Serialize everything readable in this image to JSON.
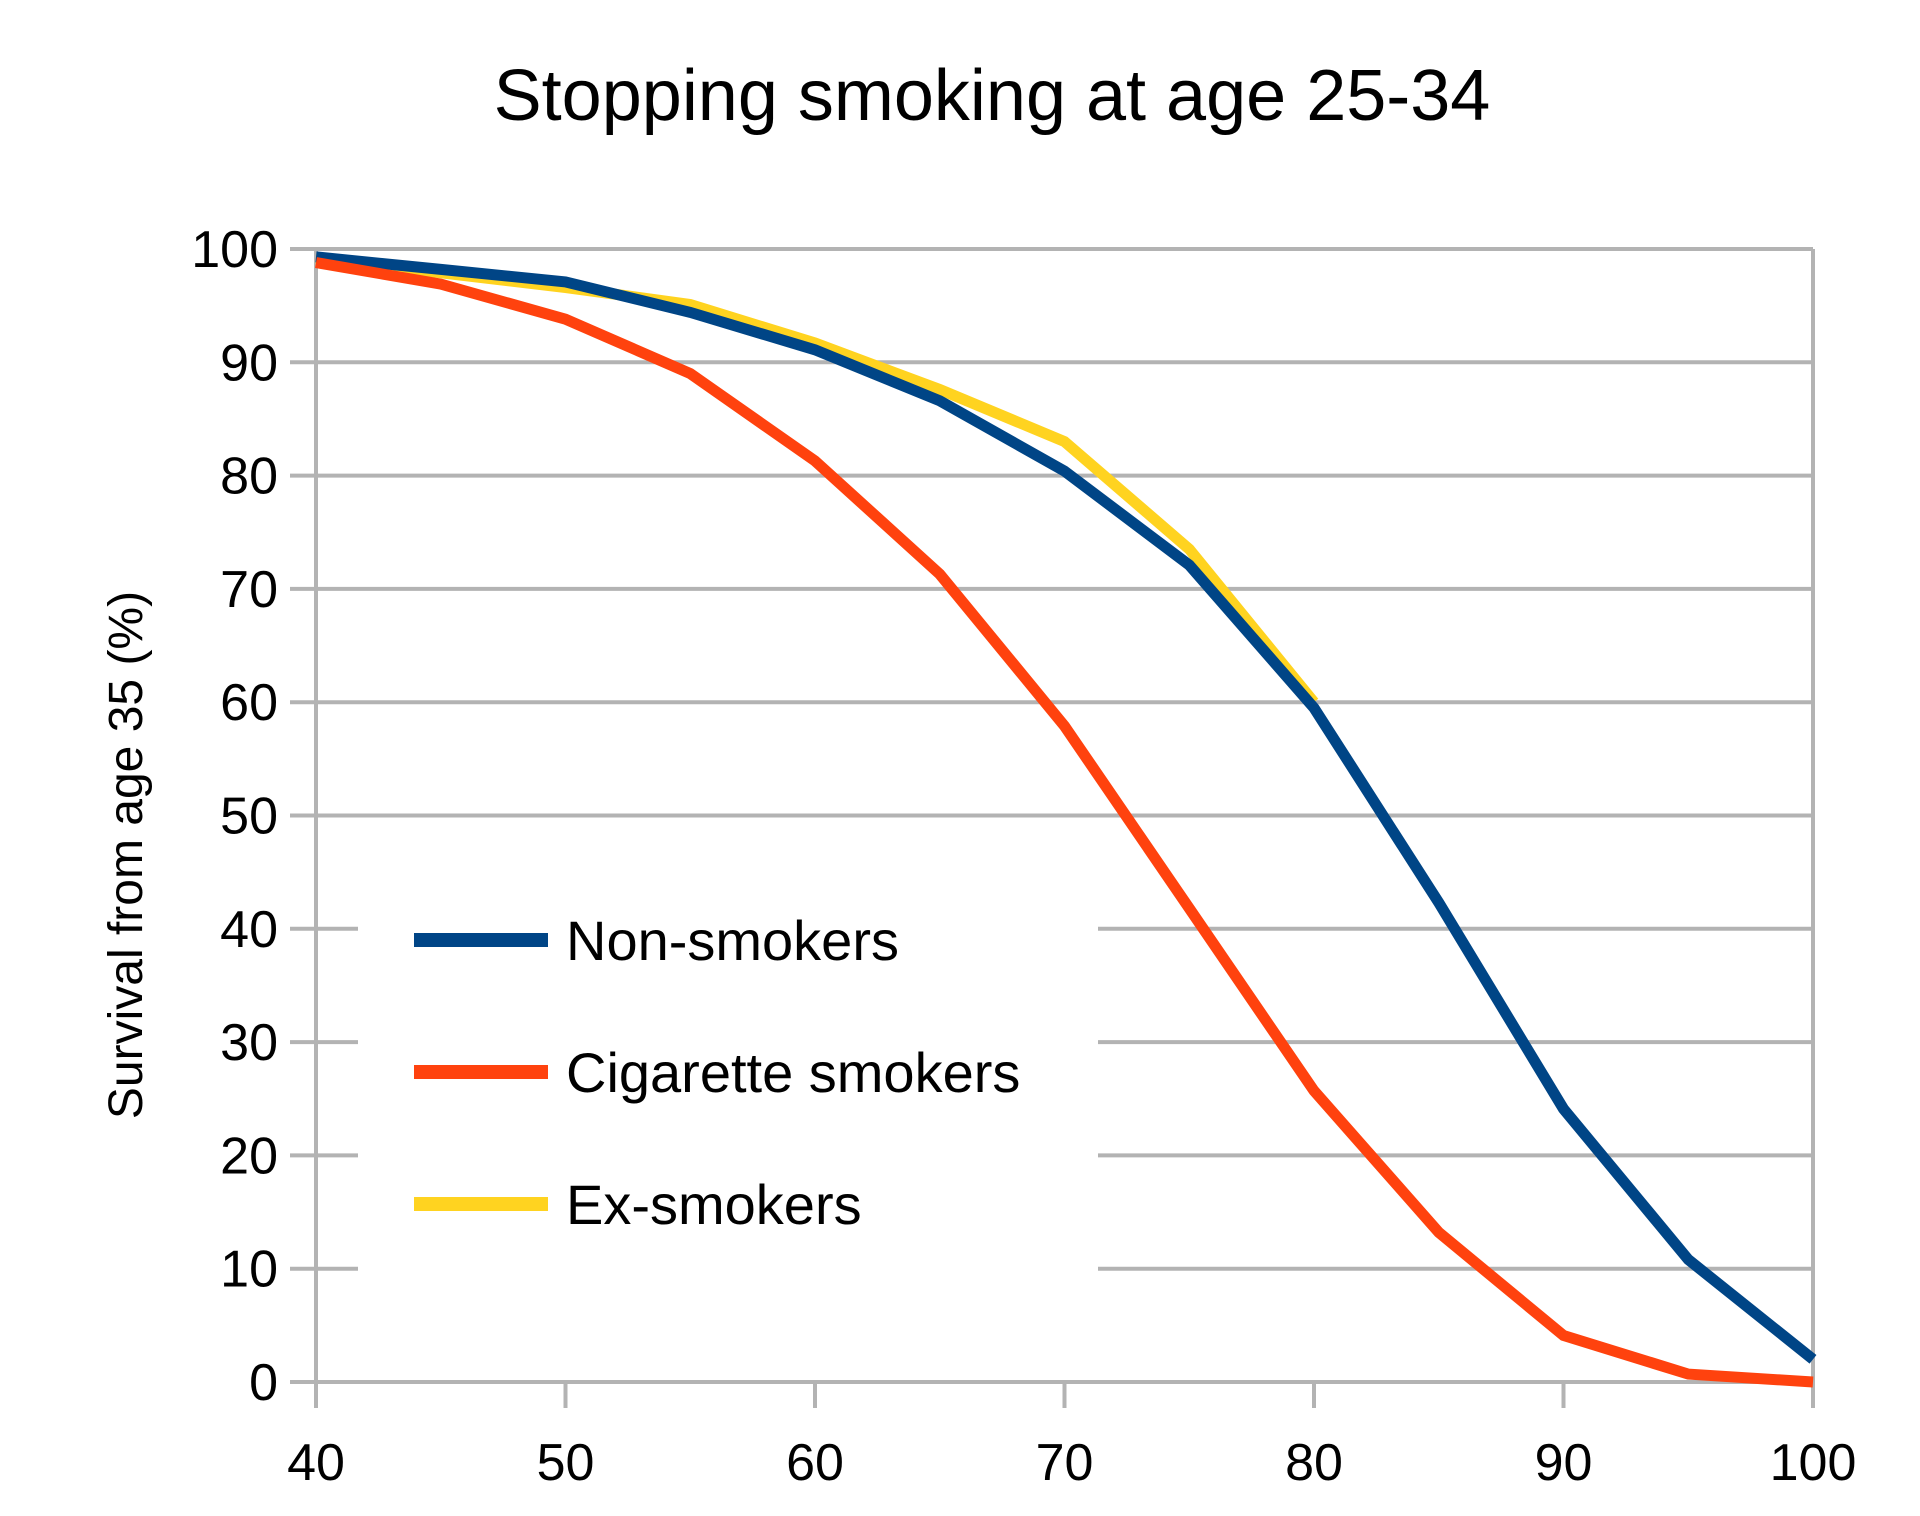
{
  "chart_data": {
    "type": "line",
    "title": "Stopping smoking at age 25-34",
    "xlabel": "",
    "ylabel": "Survival from age 35 (%)",
    "xlim": [
      40,
      100
    ],
    "ylim": [
      0,
      100
    ],
    "x_ticks": [
      40,
      50,
      60,
      70,
      80,
      90,
      100
    ],
    "y_ticks": [
      0,
      10,
      20,
      30,
      40,
      50,
      60,
      70,
      80,
      90,
      100
    ],
    "grid": true,
    "legend_position": "lower-left",
    "series": [
      {
        "name": "Non-smokers",
        "color": "#004586",
        "x": [
          40,
          45,
          50,
          55,
          60,
          65,
          70,
          75,
          80,
          85,
          90,
          95,
          100
        ],
        "y": [
          99.3,
          98.2,
          97.1,
          94.4,
          91.1,
          86.6,
          80.4,
          72.1,
          59.5,
          42.3,
          24.1,
          10.8,
          2.0
        ]
      },
      {
        "name": "Cigarette smokers",
        "color": "#ff420e",
        "x": [
          40,
          45,
          50,
          55,
          60,
          65,
          70,
          75,
          80,
          85,
          90,
          95,
          100
        ],
        "y": [
          98.8,
          96.9,
          93.8,
          89.0,
          81.3,
          71.3,
          57.9,
          41.8,
          25.7,
          13.2,
          4.1,
          0.7,
          0.0
        ]
      },
      {
        "name": "Ex-smokers",
        "color": "#ffd320",
        "x": [
          40,
          45,
          50,
          55,
          60,
          65,
          70,
          75,
          80
        ],
        "y": [
          99.2,
          97.9,
          96.6,
          95.1,
          91.7,
          87.6,
          83.0,
          73.5,
          60.0
        ]
      }
    ]
  }
}
